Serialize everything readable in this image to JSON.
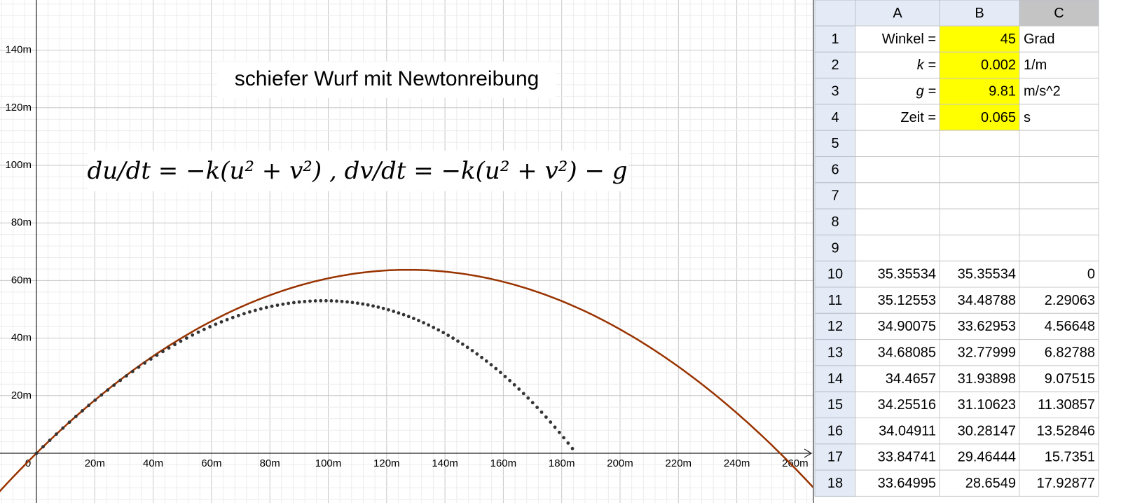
{
  "graphics": {
    "title": "schiefer Wurf mit Newtonreibung",
    "formula": "du/dt = −k(u² + v²)  ,  dv/dt = −k(u² + v²) − g",
    "x_labels": [
      "0",
      "20m",
      "40m",
      "60m",
      "80m",
      "100m",
      "120m",
      "140m",
      "160m",
      "180m",
      "200m",
      "220m",
      "240m",
      "260m"
    ],
    "y_labels": [
      "20m",
      "40m",
      "60m",
      "80m",
      "100m",
      "120m",
      "140m"
    ]
  },
  "spreadsheet": {
    "columns": [
      "A",
      "B",
      "C"
    ],
    "rows": [
      {
        "n": 1,
        "cells": [
          "Winkel =",
          45,
          "Grad"
        ]
      },
      {
        "n": 2,
        "cells": [
          "k =",
          0.002,
          "1/m"
        ]
      },
      {
        "n": 3,
        "cells": [
          "g =",
          9.81,
          "m/s^2"
        ]
      },
      {
        "n": 4,
        "cells": [
          "Zeit =",
          0.065,
          "s"
        ]
      },
      {
        "n": 5,
        "cells": [
          null,
          null,
          null
        ]
      },
      {
        "n": 6,
        "cells": [
          null,
          null,
          null
        ]
      },
      {
        "n": 7,
        "cells": [
          null,
          null,
          null
        ]
      },
      {
        "n": 8,
        "cells": [
          null,
          null,
          null
        ]
      },
      {
        "n": 9,
        "cells": [
          null,
          null,
          null
        ]
      },
      {
        "n": 10,
        "cells": [
          35.35534,
          35.35534,
          0
        ]
      },
      {
        "n": 11,
        "cells": [
          35.12553,
          34.48788,
          2.29063
        ]
      },
      {
        "n": 12,
        "cells": [
          34.90075,
          33.62953,
          4.56648
        ]
      },
      {
        "n": 13,
        "cells": [
          34.68085,
          32.77999,
          6.82788
        ]
      },
      {
        "n": 14,
        "cells": [
          34.4657,
          31.93898,
          9.07515
        ]
      },
      {
        "n": 15,
        "cells": [
          34.25516,
          31.10623,
          11.30857
        ]
      },
      {
        "n": 16,
        "cells": [
          34.04911,
          30.28147,
          13.52846
        ]
      },
      {
        "n": 17,
        "cells": [
          33.84741,
          29.46444,
          15.7351
        ]
      },
      {
        "n": 18,
        "cells": [
          33.64995,
          28.6549,
          17.92877
        ]
      }
    ]
  }
}
